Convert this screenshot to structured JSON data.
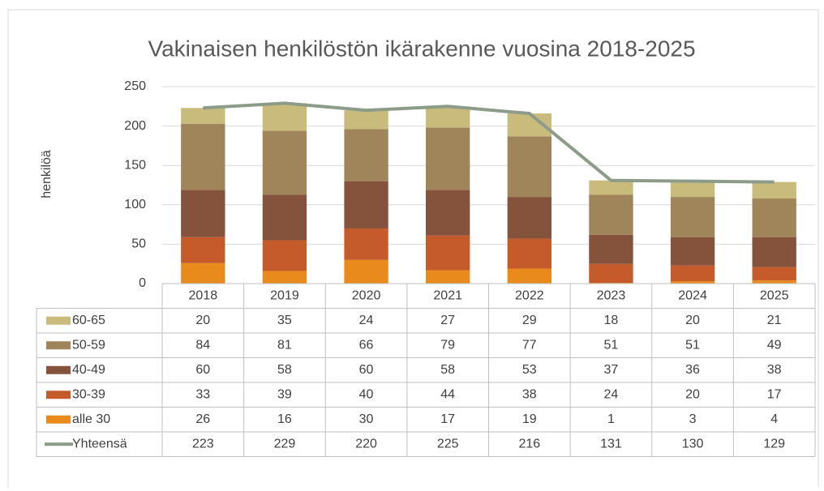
{
  "chart_data": {
    "type": "bar",
    "stacked": true,
    "title": "Vakinaisen henkilöstön ikärakenne vuosina 2018-2025",
    "y_label": "henkilöä",
    "categories": [
      "2018",
      "2019",
      "2020",
      "2021",
      "2022",
      "2023",
      "2024",
      "2025"
    ],
    "series": [
      {
        "name": "60-65",
        "color": "#c9bb7c",
        "values": [
          20,
          35,
          24,
          27,
          29,
          18,
          20,
          21
        ]
      },
      {
        "name": "50-59",
        "color": "#a0855a",
        "values": [
          84,
          81,
          66,
          79,
          77,
          51,
          51,
          49
        ]
      },
      {
        "name": "40-49",
        "color": "#85523c",
        "values": [
          60,
          58,
          60,
          58,
          53,
          37,
          36,
          38
        ]
      },
      {
        "name": "30-39",
        "color": "#c55b2b",
        "values": [
          33,
          39,
          40,
          44,
          38,
          24,
          20,
          17
        ]
      },
      {
        "name": "alle 30",
        "color": "#e88a1c",
        "values": [
          26,
          16,
          30,
          17,
          19,
          1,
          3,
          4
        ]
      },
      {
        "name": "Yhteensä",
        "type": "line",
        "color": "#8c9c88",
        "values": [
          223,
          229,
          220,
          225,
          216,
          131,
          130,
          129
        ]
      }
    ],
    "ylim": [
      0,
      250
    ],
    "yticks": [
      0,
      50,
      100,
      150,
      200,
      250
    ],
    "grid": true,
    "data_table": true
  }
}
